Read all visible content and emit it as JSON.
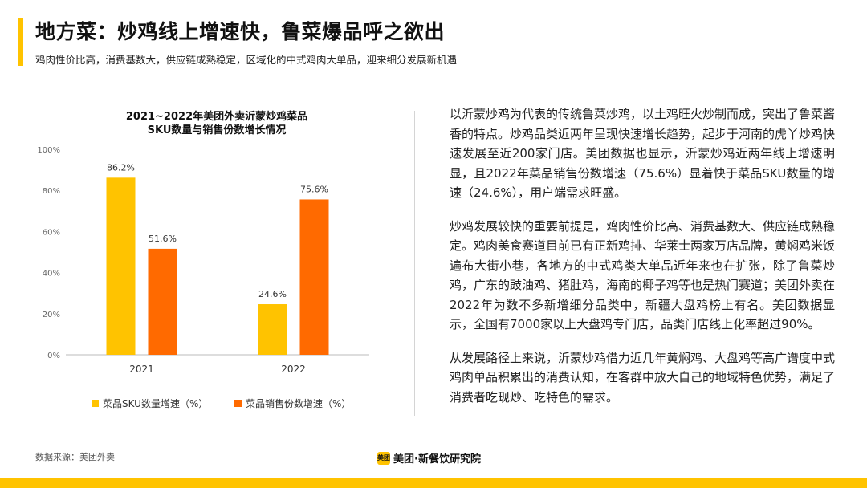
{
  "header": {
    "title": "地方菜：炒鸡线上增速快，鲁菜爆品呼之欲出",
    "subtitle": "鸡肉性价比高，消费基数大，供应链成熟稳定，区域化的中式鸡肉大单品，迎来细分发展新机遇"
  },
  "chart_data": {
    "type": "bar",
    "title_lines": [
      "2021~2022年美团外卖沂蒙炒鸡菜品",
      "SKU数量与销售份数增长情况"
    ],
    "categories": [
      "2021",
      "2022"
    ],
    "series": [
      {
        "name": "菜品SKU数量增速（%）",
        "values": [
          86.2,
          24.6
        ],
        "labels": [
          "86.2%",
          "24.6%"
        ],
        "color": "#FFC300"
      },
      {
        "name": "菜品销售份数增速（%）",
        "values": [
          51.6,
          75.6
        ],
        "labels": [
          "51.6%",
          "75.6%"
        ],
        "color": "#FF6A00"
      }
    ],
    "ylim": [
      0,
      100
    ],
    "yticks": [
      0,
      20,
      40,
      60,
      80,
      100
    ],
    "ytick_labels": [
      "0%",
      "20%",
      "40%",
      "60%",
      "80%",
      "100%"
    ],
    "xlabel": "",
    "ylabel": "",
    "grid": false,
    "legend_position": "bottom"
  },
  "body": {
    "paragraphs": [
      "以沂蒙炒鸡为代表的传统鲁菜炒鸡，以土鸡旺火炒制而成，突出了鲁菜酱香的特点。炒鸡品类近两年呈现快速增长趋势，起步于河南的虎丫炒鸡快速发展至近200家门店。美团数据也显示，沂蒙炒鸡近两年线上增速明显，且2022年菜品销售份数增速（75.6%）显着快于菜品SKU数量的增速（24.6%），用户端需求旺盛。",
      "炒鸡发展较快的重要前提是，鸡肉性价比高、消费基数大、供应链成熟稳定。鸡肉美食赛道目前已有正新鸡排、华莱士两家万店品牌，黄焖鸡米饭遍布大街小巷，各地方的中式鸡类大单品近年来也在扩张，除了鲁菜炒鸡，广东的豉油鸡、猪肚鸡，海南的椰子鸡等也是热门赛道；美团外卖在2022年为数不多新增细分品类中，新疆大盘鸡榜上有名。美团数据显示，全国有7000家以上大盘鸡专门店，品类门店线上化率超过90%。",
      "从发展路径上来说，沂蒙炒鸡借力近几年黄焖鸡、大盘鸡等高广谱度中式鸡肉单品积累出的消费认知，在客群中放大自己的地域特色优势，满足了消费者吃现炒、吃特色的需求。"
    ]
  },
  "footer": {
    "source": "数据来源：美团外卖",
    "brand_logo_text": "美团",
    "brand_name": "美团·新餐饮研究院"
  },
  "colors": {
    "accent": "#FFC300",
    "secondary": "#FF6A00"
  }
}
